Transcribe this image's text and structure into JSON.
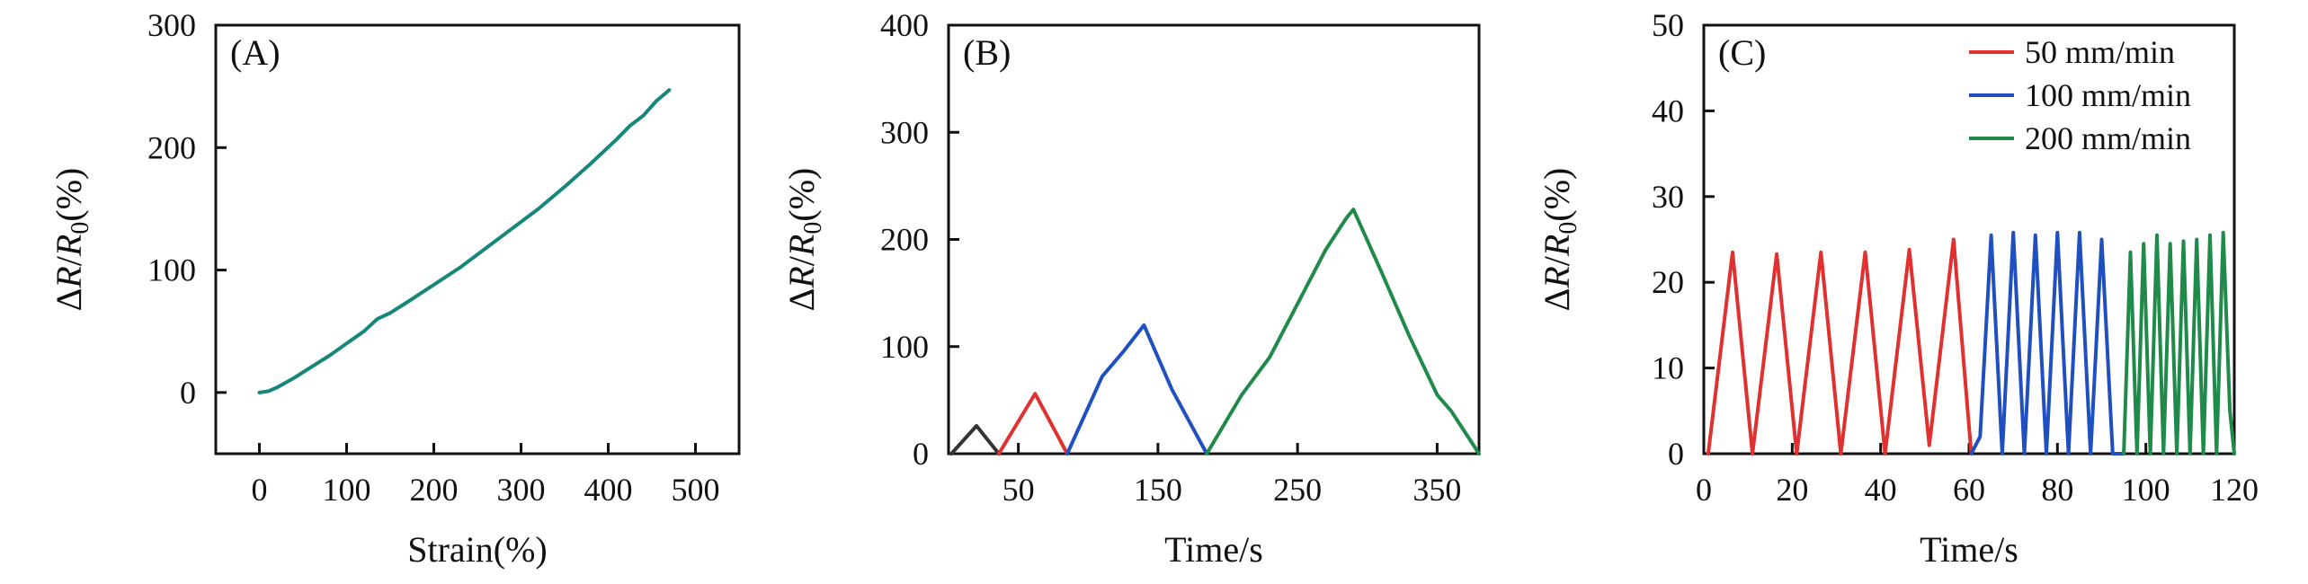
{
  "chart_data": [
    {
      "type": "line",
      "panel_label": "(A)",
      "xlabel": "Strain(%)",
      "ylabel": "ΔR/R0(%)",
      "ylabel_parts": {
        "delta": "Δ",
        "R": "R",
        "slash": "/",
        "R0_main": "R",
        "R0_sub": "0",
        "unit": "(%)"
      },
      "xlim": [
        -50,
        550
      ],
      "ylim": [
        -50,
        300
      ],
      "xticks": [
        0,
        100,
        200,
        300,
        400,
        500
      ],
      "yticks": [
        0,
        100,
        200,
        300
      ],
      "xtick_labels": [
        "0",
        "100",
        "200",
        "300",
        "400",
        "500"
      ],
      "ytick_labels": [
        "0",
        "100",
        "200",
        "300"
      ],
      "grid": false,
      "series": [
        {
          "color": "#16877a",
          "x": [
            0,
            10,
            20,
            40,
            60,
            80,
            100,
            120,
            135,
            150,
            170,
            200,
            230,
            260,
            290,
            320,
            350,
            380,
            410,
            425,
            440,
            455,
            470
          ],
          "y": [
            0,
            1,
            4,
            12,
            21,
            30,
            40,
            50,
            60,
            65,
            74,
            88,
            102,
            118,
            134,
            150,
            168,
            187,
            207,
            218,
            226,
            238,
            247
          ]
        }
      ]
    },
    {
      "type": "line",
      "panel_label": "(B)",
      "xlabel": "Time/s",
      "ylabel": "ΔR/R0(%)",
      "ylabel_parts": {
        "delta": "Δ",
        "R": "R",
        "slash": "/",
        "R0_main": "R",
        "R0_sub": "0",
        "unit": "(%)"
      },
      "xlim": [
        0,
        380
      ],
      "ylim": [
        0,
        400
      ],
      "xticks": [
        50,
        150,
        250,
        350
      ],
      "yticks": [
        0,
        100,
        200,
        300,
        400
      ],
      "xtick_labels": [
        "50",
        "150",
        "250",
        "350"
      ],
      "ytick_labels": [
        "0",
        "100",
        "200",
        "300",
        "400"
      ],
      "grid": false,
      "series": [
        {
          "color": "#333333",
          "x": [
            2,
            20,
            36
          ],
          "y": [
            0,
            26,
            0
          ]
        },
        {
          "color": "#e03030",
          "x": [
            36,
            62,
            85
          ],
          "y": [
            0,
            56,
            0
          ]
        },
        {
          "color": "#2050c0",
          "x": [
            85,
            110,
            125,
            140,
            160,
            185
          ],
          "y": [
            0,
            72,
            95,
            120,
            60,
            0
          ]
        },
        {
          "color": "#1f8a4a",
          "x": [
            185,
            210,
            230,
            250,
            270,
            285,
            290,
            310,
            330,
            350,
            360,
            370,
            380
          ],
          "y": [
            0,
            55,
            90,
            140,
            190,
            220,
            228,
            170,
            110,
            55,
            40,
            20,
            0
          ]
        }
      ]
    },
    {
      "type": "line",
      "panel_label": "(C)",
      "xlabel": "Time/s",
      "ylabel": "ΔR/R0(%)",
      "ylabel_parts": {
        "delta": "Δ",
        "R": "R",
        "slash": "/",
        "R0_main": "R",
        "R0_sub": "0",
        "unit": "(%)"
      },
      "xlim": [
        0,
        120
      ],
      "ylim": [
        0,
        50
      ],
      "xticks": [
        0,
        20,
        40,
        60,
        80,
        100,
        120
      ],
      "yticks": [
        0,
        10,
        20,
        30,
        40,
        50
      ],
      "xtick_labels": [
        "0",
        "20",
        "40",
        "60",
        "80",
        "100",
        "120"
      ],
      "ytick_labels": [
        "0",
        "10",
        "20",
        "30",
        "40",
        "50"
      ],
      "grid": false,
      "legend_position": "top-right",
      "series": [
        {
          "name": "50 mm/min",
          "color": "#e03030",
          "x": [
            1,
            6.5,
            11,
            16.5,
            21,
            26.5,
            31,
            36.5,
            41,
            46.5,
            51,
            56.5,
            60.5
          ],
          "y": [
            0,
            23.5,
            0,
            23.3,
            0,
            23.5,
            0,
            23.5,
            0,
            23.8,
            1,
            25,
            0
          ]
        },
        {
          "name": "100 mm/min",
          "color": "#2050c0",
          "x": [
            60.5,
            62.5,
            65,
            67.5,
            70,
            72.5,
            75,
            77.5,
            80,
            82.5,
            85,
            87.5,
            90,
            92.5,
            95
          ],
          "y": [
            0,
            2,
            25.5,
            0,
            25.8,
            0,
            25.5,
            0,
            25.8,
            0,
            25.8,
            0,
            25,
            0,
            0
          ]
        },
        {
          "name": "200 mm/min",
          "color": "#1f8a4a",
          "x": [
            95,
            96.5,
            98,
            99.5,
            101,
            102.5,
            104,
            105.5,
            107,
            108.5,
            110,
            111.5,
            113,
            114.5,
            116,
            117.5,
            119,
            120
          ],
          "y": [
            0,
            23.5,
            0,
            24.5,
            0,
            25.5,
            0,
            24.5,
            0,
            24.8,
            0,
            25,
            0,
            25.5,
            0,
            25.8,
            5,
            0
          ]
        }
      ]
    }
  ]
}
